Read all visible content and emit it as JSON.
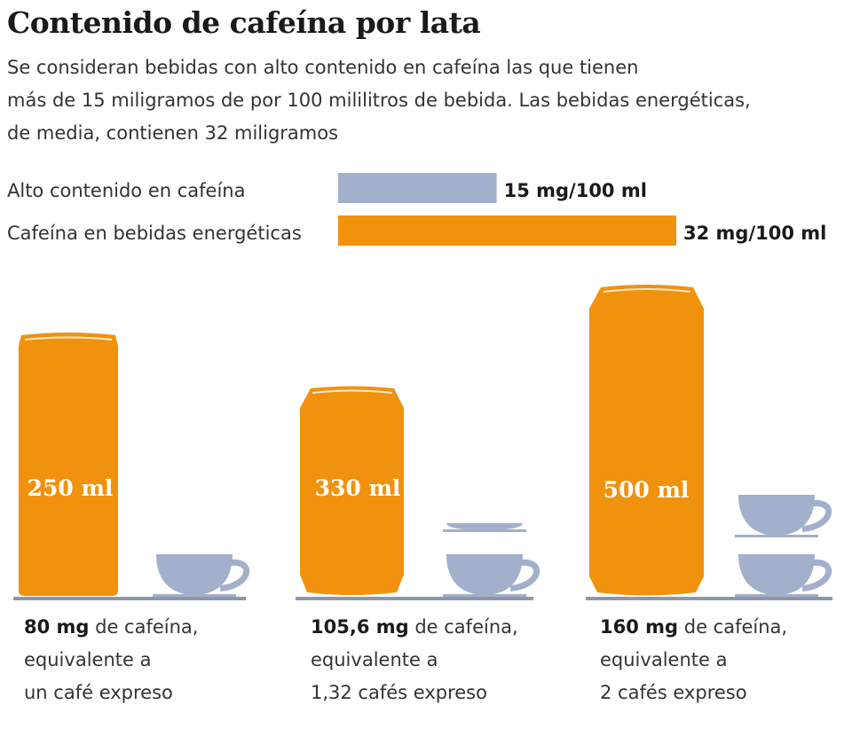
{
  "title": "Contenido de cafeína por lata",
  "subtitle_lines": [
    "Se consideran bebidas con alto contenido en cafeína las que tienen",
    "más de 15 miligramos de por 100 mililitros de bebida. Las bebidas energéticas,",
    "de media, contienen 32 miligramos"
  ],
  "colors": {
    "orange": "#f0920e",
    "gray": "#a3b0cb",
    "floor": "#8d97a8"
  },
  "chart_data": [
    {
      "type": "bar",
      "orientation": "horizontal",
      "unit": "mg/100 ml",
      "bars": [
        {
          "label": "Alto contenido en cafeína",
          "value": 15,
          "value_label": "15 mg/100 ml",
          "color": "#a3b0cb"
        },
        {
          "label": "Cafeína en bebidas energéticas",
          "value": 32,
          "value_label": "32 mg/100 ml",
          "color": "#f0920e"
        }
      ]
    },
    {
      "type": "bar",
      "categories": [
        "250 ml",
        "330 ml",
        "500 ml"
      ],
      "can_volume_ml": [
        250,
        330,
        500
      ],
      "caffeine_mg": [
        80,
        105.6,
        160
      ],
      "espresso_equivalent": [
        1,
        1.32,
        2
      ],
      "captions": [
        {
          "amount": "80 mg",
          "rest": " de cafeína,",
          "line2": "equivalente a",
          "line3": "un café expreso"
        },
        {
          "amount": "105,6 mg",
          "rest": " de cafeína,",
          "line2": "equivalente a",
          "line3": "1,32 cafés expreso"
        },
        {
          "amount": "160 mg",
          "rest": " de cafeína,",
          "line2": "equivalente a",
          "line3": "2 cafés expreso"
        }
      ]
    }
  ]
}
